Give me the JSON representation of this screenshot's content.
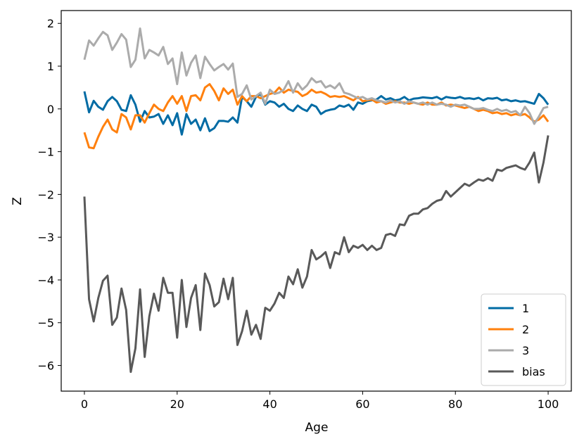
{
  "chart_data": {
    "type": "line",
    "title": "",
    "xlabel": "Age",
    "ylabel": "Z",
    "xlim": [
      -5,
      105
    ],
    "ylim": [
      -6.6,
      2.3
    ],
    "xticks": [
      0,
      20,
      40,
      60,
      80,
      100
    ],
    "yticks": [
      -6,
      -5,
      -4,
      -3,
      -2,
      -1,
      0,
      1,
      2
    ],
    "ytick_labels": [
      "−6",
      "−5",
      "−4",
      "−3",
      "−2",
      "−1",
      "0",
      "1",
      "2"
    ],
    "grid": false,
    "legend_position": "lower-right",
    "x": [
      0,
      1,
      2,
      3,
      4,
      5,
      6,
      7,
      8,
      9,
      10,
      11,
      12,
      13,
      14,
      15,
      16,
      17,
      18,
      19,
      20,
      21,
      22,
      23,
      24,
      25,
      26,
      27,
      28,
      29,
      30,
      31,
      32,
      33,
      34,
      35,
      36,
      37,
      38,
      39,
      40,
      41,
      42,
      43,
      44,
      45,
      46,
      47,
      48,
      49,
      50,
      51,
      52,
      53,
      54,
      55,
      56,
      57,
      58,
      59,
      60,
      61,
      62,
      63,
      64,
      65,
      66,
      67,
      68,
      69,
      70,
      71,
      72,
      73,
      74,
      75,
      76,
      77,
      78,
      79,
      80,
      81,
      82,
      83,
      84,
      85,
      86,
      87,
      88,
      89,
      90,
      91,
      92,
      93,
      94,
      95,
      96,
      97,
      98,
      99,
      100
    ],
    "series": [
      {
        "name": "1",
        "color": "#006ba4",
        "values": [
          0.41,
          -0.08,
          0.19,
          0.05,
          -0.02,
          0.18,
          0.28,
          0.18,
          -0.02,
          -0.05,
          0.32,
          0.1,
          -0.3,
          -0.05,
          -0.2,
          -0.18,
          -0.12,
          -0.35,
          -0.15,
          -0.38,
          -0.1,
          -0.6,
          -0.12,
          -0.35,
          -0.25,
          -0.5,
          -0.22,
          -0.52,
          -0.45,
          -0.28,
          -0.28,
          -0.3,
          -0.2,
          -0.32,
          0.28,
          0.18,
          0.05,
          0.28,
          0.35,
          0.1,
          0.18,
          0.15,
          0.05,
          0.12,
          0.0,
          -0.05,
          0.08,
          0.0,
          -0.05,
          0.1,
          0.05,
          -0.12,
          -0.05,
          -0.02,
          0.0,
          0.08,
          0.05,
          0.1,
          -0.02,
          0.15,
          0.12,
          0.18,
          0.2,
          0.22,
          0.3,
          0.22,
          0.25,
          0.2,
          0.22,
          0.28,
          0.2,
          0.24,
          0.25,
          0.27,
          0.26,
          0.25,
          0.28,
          0.22,
          0.28,
          0.26,
          0.25,
          0.28,
          0.24,
          0.25,
          0.23,
          0.26,
          0.2,
          0.25,
          0.24,
          0.26,
          0.2,
          0.22,
          0.18,
          0.2,
          0.17,
          0.18,
          0.15,
          0.12,
          0.35,
          0.25,
          0.1
        ]
      },
      {
        "name": "2",
        "color": "#ff800e",
        "values": [
          -0.55,
          -0.9,
          -0.92,
          -0.65,
          -0.42,
          -0.25,
          -0.48,
          -0.55,
          -0.12,
          -0.2,
          -0.48,
          -0.15,
          -0.15,
          -0.32,
          -0.1,
          0.1,
          0.0,
          -0.05,
          0.15,
          0.3,
          0.12,
          0.3,
          -0.05,
          0.3,
          0.32,
          0.2,
          0.5,
          0.58,
          0.42,
          0.2,
          0.48,
          0.35,
          0.45,
          0.1,
          0.3,
          0.18,
          0.3,
          0.3,
          0.25,
          0.3,
          0.35,
          0.38,
          0.5,
          0.38,
          0.45,
          0.42,
          0.4,
          0.3,
          0.35,
          0.45,
          0.38,
          0.4,
          0.35,
          0.28,
          0.3,
          0.28,
          0.3,
          0.25,
          0.2,
          0.28,
          0.18,
          0.2,
          0.22,
          0.15,
          0.18,
          0.12,
          0.15,
          0.18,
          0.15,
          0.15,
          0.12,
          0.15,
          0.12,
          0.1,
          0.15,
          0.1,
          0.1,
          0.15,
          0.08,
          0.1,
          0.08,
          0.05,
          0.02,
          0.05,
          0.0,
          -0.05,
          -0.02,
          -0.05,
          -0.1,
          -0.08,
          -0.12,
          -0.1,
          -0.15,
          -0.12,
          -0.15,
          -0.12,
          -0.2,
          -0.3,
          -0.25,
          -0.15,
          -0.3
        ]
      },
      {
        "name": "3",
        "color": "#ababab",
        "values": [
          1.15,
          1.6,
          1.48,
          1.65,
          1.8,
          1.72,
          1.38,
          1.55,
          1.75,
          1.62,
          0.98,
          1.15,
          1.88,
          1.18,
          1.38,
          1.32,
          1.25,
          1.45,
          1.05,
          1.18,
          0.58,
          1.32,
          0.78,
          1.08,
          1.25,
          0.72,
          1.22,
          1.05,
          0.9,
          0.98,
          1.05,
          0.92,
          1.06,
          0.28,
          0.35,
          0.55,
          0.22,
          0.3,
          0.38,
          0.12,
          0.45,
          0.35,
          0.38,
          0.45,
          0.65,
          0.38,
          0.6,
          0.45,
          0.55,
          0.72,
          0.62,
          0.65,
          0.5,
          0.55,
          0.48,
          0.6,
          0.38,
          0.35,
          0.3,
          0.25,
          0.28,
          0.22,
          0.25,
          0.2,
          0.18,
          0.15,
          0.2,
          0.15,
          0.18,
          0.12,
          0.18,
          0.15,
          0.12,
          0.15,
          0.1,
          0.15,
          0.1,
          0.12,
          0.1,
          0.05,
          0.1,
          0.08,
          0.1,
          0.05,
          0.0,
          0.0,
          0.02,
          -0.02,
          -0.05,
          0.0,
          -0.05,
          -0.02,
          -0.08,
          -0.05,
          -0.15,
          0.05,
          -0.1,
          -0.35,
          -0.18,
          0.02,
          0.05
        ]
      },
      {
        "name": "bias",
        "color": "#595959",
        "values": [
          -2.05,
          -4.45,
          -4.97,
          -4.42,
          -4.02,
          -3.9,
          -5.05,
          -4.88,
          -4.2,
          -4.7,
          -6.15,
          -5.6,
          -4.22,
          -5.8,
          -4.85,
          -4.32,
          -4.72,
          -3.95,
          -4.3,
          -4.3,
          -5.35,
          -4.0,
          -5.1,
          -4.42,
          -4.12,
          -5.17,
          -3.85,
          -4.12,
          -4.62,
          -4.52,
          -3.97,
          -4.45,
          -3.95,
          -5.52,
          -5.2,
          -4.72,
          -5.28,
          -5.05,
          -5.38,
          -4.65,
          -4.72,
          -4.55,
          -4.3,
          -4.42,
          -3.92,
          -4.1,
          -3.75,
          -4.18,
          -3.92,
          -3.3,
          -3.52,
          -3.45,
          -3.35,
          -3.72,
          -3.35,
          -3.4,
          -3.0,
          -3.35,
          -3.2,
          -3.25,
          -3.18,
          -3.3,
          -3.2,
          -3.3,
          -3.25,
          -2.95,
          -2.92,
          -2.97,
          -2.7,
          -2.72,
          -2.5,
          -2.45,
          -2.45,
          -2.35,
          -2.32,
          -2.22,
          -2.15,
          -2.12,
          -1.92,
          -2.05,
          -1.95,
          -1.85,
          -1.75,
          -1.8,
          -1.72,
          -1.65,
          -1.68,
          -1.62,
          -1.68,
          -1.42,
          -1.45,
          -1.38,
          -1.35,
          -1.32,
          -1.38,
          -1.42,
          -1.25,
          -1.02,
          -1.72,
          -1.25,
          -0.62
        ]
      }
    ]
  }
}
